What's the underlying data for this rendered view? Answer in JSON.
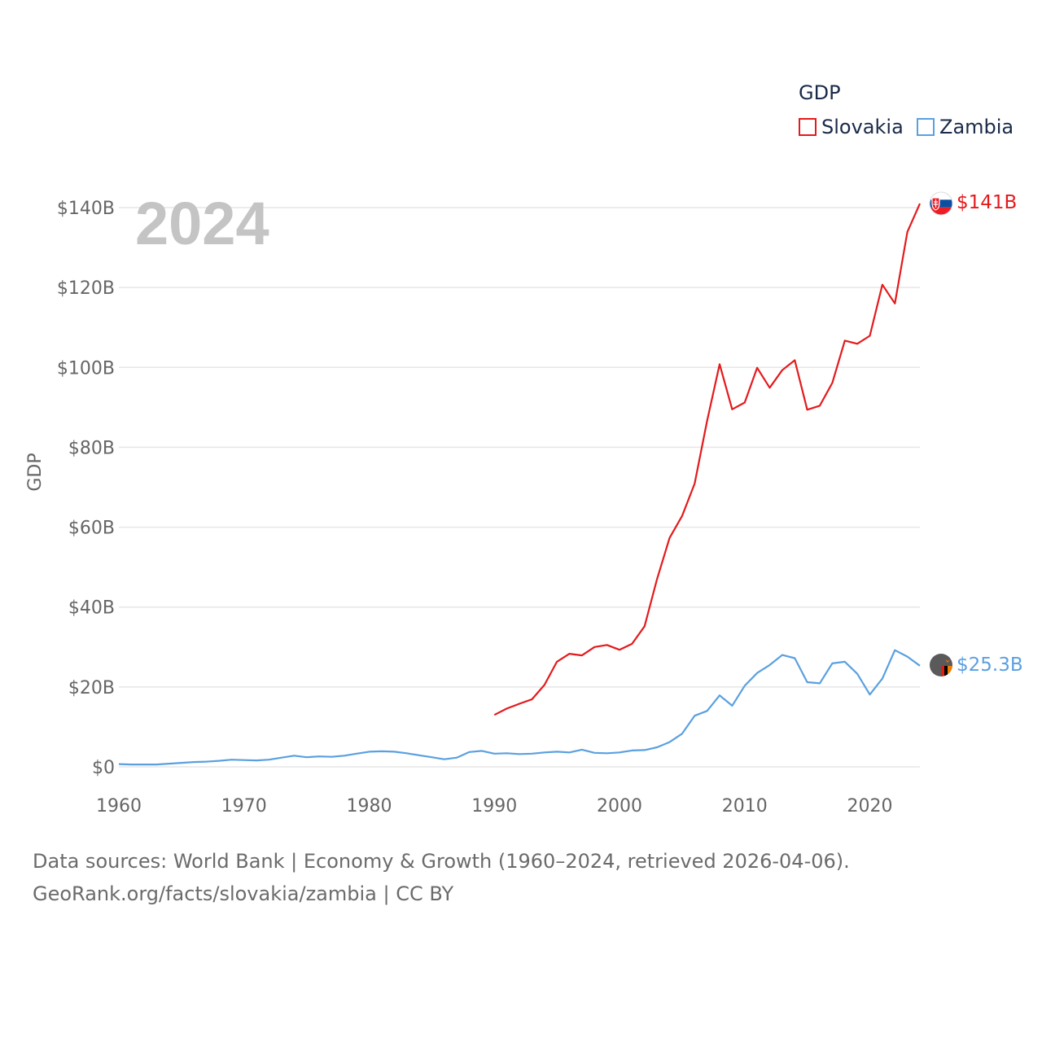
{
  "legend": {
    "title": "GDP",
    "items": [
      {
        "label": "Slovakia",
        "color": "#e41a1c"
      },
      {
        "label": "Zambia",
        "color": "#5aa0e0"
      }
    ]
  },
  "year_label": "2024",
  "footer": {
    "line1": "Data sources: World Bank | Economy & Growth (1960–2024, retrieved 2026-04-06).",
    "line2": "GeoRank.org/facts/slovakia/zambia | CC BY"
  },
  "flags": {
    "slovakia": "slovakia-flag-icon",
    "zambia": "zambia-flag-icon"
  },
  "chart_data": {
    "type": "line",
    "title": "GDP",
    "xlabel": "",
    "ylabel": "GDP",
    "xlim": [
      1960,
      2024
    ],
    "ylim": [
      0,
      140
    ],
    "x_ticks": [
      1960,
      1970,
      1980,
      1990,
      2000,
      2010,
      2020
    ],
    "x_tick_labels": [
      "1960",
      "1970",
      "1980",
      "1990",
      "2000",
      "2010",
      "2020"
    ],
    "y_ticks": [
      0,
      20,
      40,
      60,
      80,
      100,
      120,
      140
    ],
    "y_tick_labels": [
      "$0",
      "$20B",
      "$40B",
      "$60B",
      "$80B",
      "$100B",
      "$120B",
      "$140B"
    ],
    "grid": true,
    "legend_position": "top-right",
    "series": [
      {
        "name": "Slovakia",
        "color": "#e41a1c",
        "end_label": "$141B",
        "x": [
          1990,
          1991,
          1992,
          1993,
          1994,
          1995,
          1996,
          1997,
          1998,
          1999,
          2000,
          2001,
          2002,
          2003,
          2004,
          2005,
          2006,
          2007,
          2008,
          2009,
          2010,
          2011,
          2012,
          2013,
          2014,
          2015,
          2016,
          2017,
          2018,
          2019,
          2020,
          2021,
          2022,
          2023,
          2024
        ],
        "values": [
          13.0,
          14.6,
          15.8,
          16.9,
          20.5,
          26.3,
          28.3,
          27.9,
          30.0,
          30.5,
          29.3,
          30.8,
          35.2,
          47.0,
          57.3,
          62.8,
          70.9,
          86.6,
          100.8,
          89.5,
          91.2,
          99.9,
          94.9,
          99.3,
          101.8,
          89.4,
          90.4,
          96.1,
          106.7,
          105.9,
          107.9,
          120.7,
          116.0,
          133.9,
          141.0
        ]
      },
      {
        "name": "Zambia",
        "color": "#5aa0e0",
        "end_label": "$25.3B",
        "x": [
          1960,
          1961,
          1962,
          1963,
          1964,
          1965,
          1966,
          1967,
          1968,
          1969,
          1970,
          1971,
          1972,
          1973,
          1974,
          1975,
          1976,
          1977,
          1978,
          1979,
          1980,
          1981,
          1982,
          1983,
          1984,
          1985,
          1986,
          1987,
          1988,
          1989,
          1990,
          1991,
          1992,
          1993,
          1994,
          1995,
          1996,
          1997,
          1998,
          1999,
          2000,
          2001,
          2002,
          2003,
          2004,
          2005,
          2006,
          2007,
          2008,
          2009,
          2010,
          2011,
          2012,
          2013,
          2014,
          2015,
          2016,
          2017,
          2018,
          2019,
          2020,
          2021,
          2022,
          2023,
          2024
        ],
        "values": [
          0.7,
          0.6,
          0.6,
          0.6,
          0.8,
          1.0,
          1.2,
          1.3,
          1.5,
          1.8,
          1.7,
          1.6,
          1.8,
          2.3,
          2.8,
          2.4,
          2.6,
          2.5,
          2.8,
          3.3,
          3.8,
          3.9,
          3.8,
          3.4,
          2.9,
          2.4,
          1.9,
          2.3,
          3.7,
          4.0,
          3.3,
          3.4,
          3.2,
          3.3,
          3.6,
          3.8,
          3.6,
          4.3,
          3.5,
          3.4,
          3.6,
          4.1,
          4.2,
          4.9,
          6.2,
          8.3,
          12.8,
          14.0,
          17.9,
          15.3,
          20.3,
          23.5,
          25.5,
          28.0,
          27.2,
          21.2,
          20.9,
          25.9,
          26.3,
          23.3,
          18.1,
          22.1,
          29.2,
          27.6,
          25.3
        ]
      }
    ]
  }
}
